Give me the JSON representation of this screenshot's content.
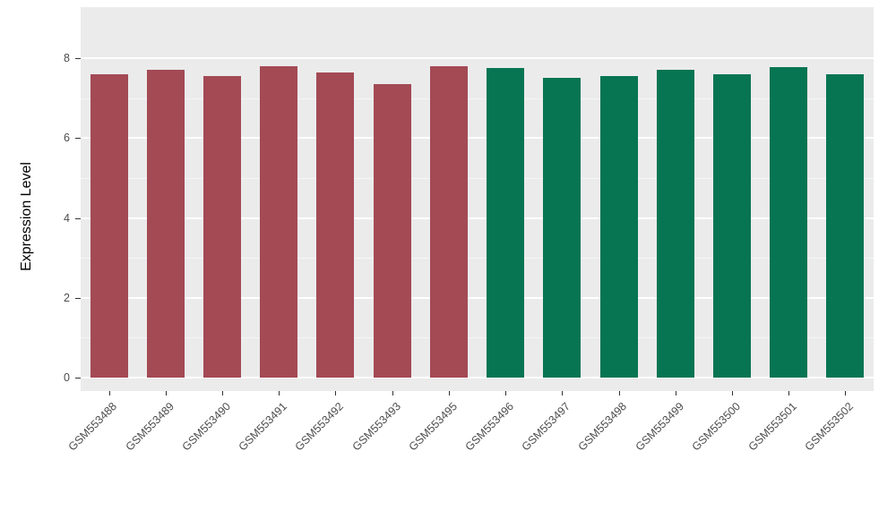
{
  "chart_data": {
    "type": "bar",
    "title": "",
    "xlabel": "",
    "ylabel": "Expression Level",
    "ylim": [
      0,
      8
    ],
    "yticks": [
      0,
      2,
      4,
      6,
      8
    ],
    "ytick_labels": [
      "0",
      "2",
      "4",
      "6",
      "8"
    ],
    "minor_gridlines": [
      1,
      3,
      5,
      7
    ],
    "grid": "on",
    "legend": "none",
    "panel_background": "#EBEBEB",
    "gridline_color": "#FFFFFF",
    "group1_color": "#A34A55",
    "group2_color": "#077552",
    "categories": [
      "GSM553488",
      "GSM553489",
      "GSM553490",
      "GSM553491",
      "GSM553492",
      "GSM553493",
      "GSM553495",
      "GSM553496",
      "GSM553497",
      "GSM553498",
      "GSM553499",
      "GSM553500",
      "GSM553501",
      "GSM553502"
    ],
    "values": [
      7.6,
      7.7,
      7.55,
      7.8,
      7.65,
      7.35,
      7.8,
      7.75,
      7.5,
      7.55,
      7.7,
      7.6,
      7.78,
      7.6
    ],
    "bar_colors": [
      "#A34A55",
      "#A34A55",
      "#A34A55",
      "#A34A55",
      "#A34A55",
      "#A34A55",
      "#A34A55",
      "#077552",
      "#077552",
      "#077552",
      "#077552",
      "#077552",
      "#077552",
      "#077552"
    ]
  }
}
